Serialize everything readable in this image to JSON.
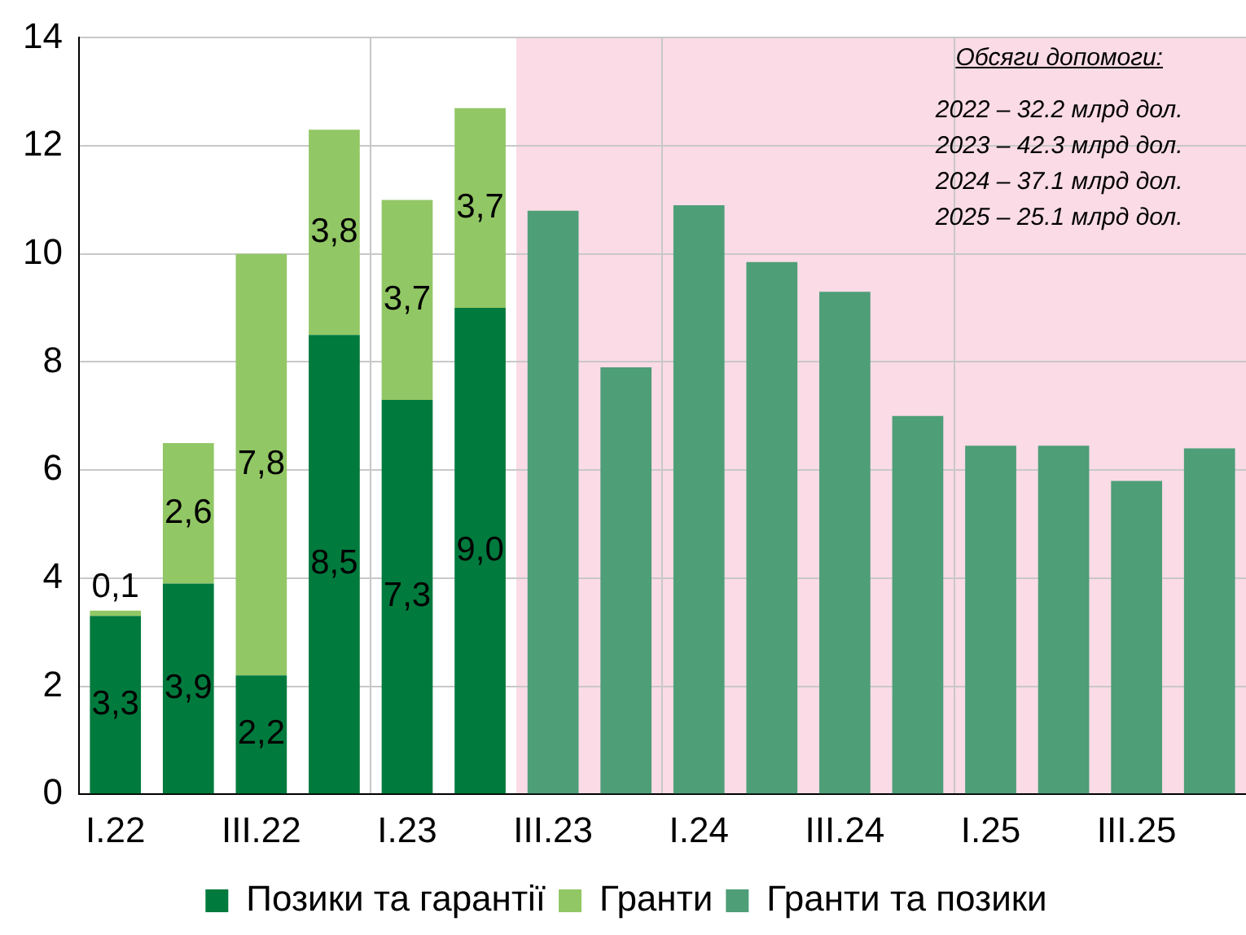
{
  "chart_data": {
    "type": "bar",
    "stacked": true,
    "categories": [
      "I.22",
      null,
      "III.22",
      null,
      "I.23",
      null,
      "III.23",
      null,
      "I.24",
      null,
      "III.24",
      null,
      "I.25",
      null,
      "III.25",
      null
    ],
    "series": [
      {
        "name": "Позики та гарантії",
        "color": "#007a3d",
        "values": [
          3.3,
          3.9,
          2.2,
          8.5,
          7.3,
          9.0,
          null,
          null,
          null,
          null,
          null,
          null,
          null,
          null,
          null,
          null
        ],
        "value_labels": [
          "3,3",
          "3,9",
          "2,2",
          "8,5",
          "7,3",
          "9,0",
          null,
          null,
          null,
          null,
          null,
          null,
          null,
          null,
          null,
          null
        ]
      },
      {
        "name": "Гранти",
        "color": "#92c765",
        "values": [
          0.1,
          2.6,
          7.8,
          3.8,
          3.7,
          3.7,
          null,
          null,
          null,
          null,
          null,
          null,
          null,
          null,
          null,
          null
        ],
        "value_labels": [
          "0,1",
          "2,6",
          "7,8",
          "3,8",
          "3,7",
          "3,7",
          null,
          null,
          null,
          null,
          null,
          null,
          null,
          null,
          null,
          null
        ]
      },
      {
        "name": "Гранти та позики",
        "color": "#4e9e78",
        "values": [
          null,
          null,
          null,
          null,
          null,
          null,
          10.8,
          7.9,
          10.9,
          9.85,
          9.3,
          7.0,
          6.45,
          6.45,
          5.8,
          6.4
        ]
      }
    ],
    "ylim": [
      0,
      14
    ],
    "yticks": [
      0,
      2,
      4,
      6,
      8,
      10,
      12,
      14
    ],
    "grid": true,
    "legend": "bottom",
    "annotations": [
      "Обсяги допомоги:",
      "2022 – 32.2 млрд дол.",
      "2023 – 42.3 млрд дол.",
      "2024 – 37.1 млрд дол.",
      "2025 – 25.1 млрд дол."
    ]
  }
}
